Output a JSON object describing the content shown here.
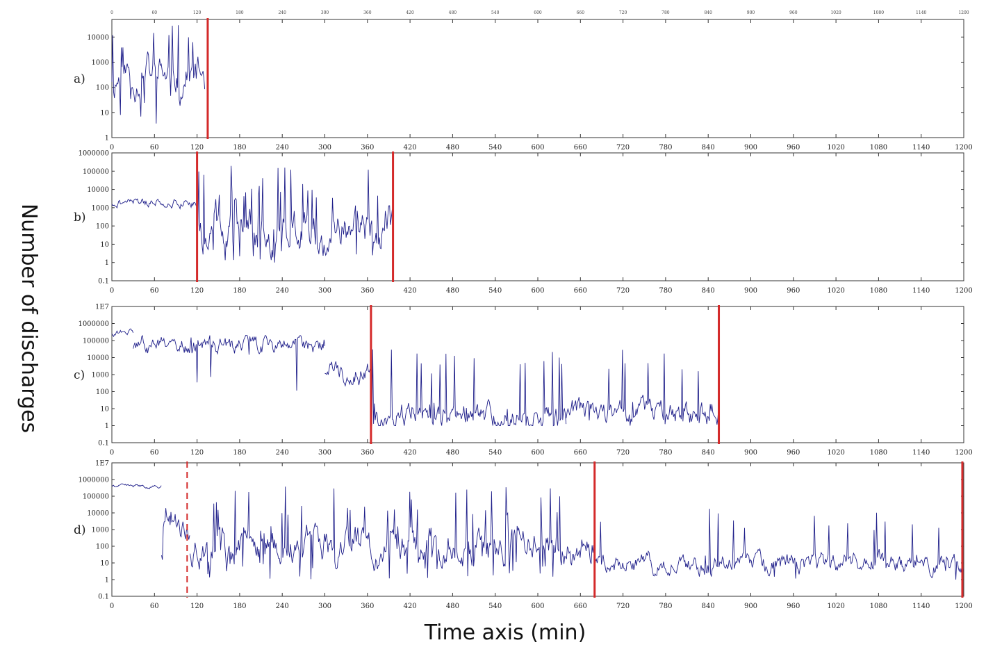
{
  "chart_data": {
    "type": "line",
    "xlabel": "Time axis (min)",
    "ylabel": "Number of discharges",
    "x_ticks": [
      0,
      60,
      120,
      180,
      240,
      300,
      360,
      420,
      480,
      540,
      600,
      660,
      720,
      780,
      840,
      900,
      960,
      1020,
      1080,
      1140,
      1200
    ],
    "xlim": [
      0,
      1200
    ],
    "y_scale": "log",
    "colors": {
      "series": "#1f1f8a",
      "marker": "#d42a2a"
    },
    "panels": [
      {
        "label": "a)",
        "yticks": [
          {
            "v": 1,
            "label": "1"
          },
          {
            "v": 10,
            "label": "10"
          },
          {
            "v": 100,
            "label": "100"
          },
          {
            "v": 1000,
            "label": "1000"
          },
          {
            "v": 10000,
            "label": "10000"
          }
        ],
        "ylim": [
          1,
          50000
        ],
        "top_axis": true,
        "series_segments": [
          {
            "x_start": 0,
            "x_end": 132,
            "base": 300,
            "spread": 1.0,
            "min_value": 3,
            "max_value": 30000,
            "spikes": 0.12,
            "seed": 11
          }
        ],
        "markers": [
          {
            "x": 135,
            "style": "solid"
          }
        ]
      },
      {
        "label": "b)",
        "yticks": [
          {
            "v": 0.1,
            "label": "0.1"
          },
          {
            "v": 1,
            "label": "1"
          },
          {
            "v": 10,
            "label": "10"
          },
          {
            "v": 100,
            "label": "100"
          },
          {
            "v": 1000,
            "label": "1000"
          },
          {
            "v": 10000,
            "label": "10000"
          },
          {
            "v": 100000,
            "label": "100000"
          },
          {
            "v": 1000000,
            "label": "1000000"
          }
        ],
        "ylim": [
          0.1,
          1000000
        ],
        "series_segments": [
          {
            "x_start": 0,
            "x_end": 120,
            "base": 2000,
            "spread": 0.35,
            "min_value": 100,
            "max_value": 8000,
            "spikes": 0.0,
            "seed": 21
          },
          {
            "x_start": 120,
            "x_end": 396,
            "base": 60,
            "spread": 1.5,
            "min_value": 1,
            "max_value": 200000,
            "spikes": 0.18,
            "seed": 22
          }
        ],
        "markers": [
          {
            "x": 120,
            "style": "solid"
          },
          {
            "x": 396,
            "style": "solid"
          }
        ]
      },
      {
        "label": "c)",
        "yticks": [
          {
            "v": 0.1,
            "label": "0.1"
          },
          {
            "v": 1,
            "label": "1"
          },
          {
            "v": 10,
            "label": "10"
          },
          {
            "v": 100,
            "label": "100"
          },
          {
            "v": 1000,
            "label": "1000"
          },
          {
            "v": 10000,
            "label": "10000"
          },
          {
            "v": 100000,
            "label": "100000"
          },
          {
            "v": 1000000,
            "label": "1000000"
          },
          {
            "v": 10000000,
            "label": "1E7"
          }
        ],
        "ylim": [
          0.1,
          10000000
        ],
        "series_segments": [
          {
            "x_start": 0,
            "x_end": 30,
            "base": 300000,
            "spread": 0.25,
            "min_value": 50000,
            "max_value": 600000,
            "spikes": 0.0,
            "seed": 31
          },
          {
            "x_start": 30,
            "x_end": 300,
            "base": 50000,
            "spread": 0.7,
            "min_value": 100,
            "max_value": 200000,
            "spikes": 0.05,
            "seed": 32
          },
          {
            "x_start": 300,
            "x_end": 365,
            "base": 2000,
            "spread": 0.9,
            "min_value": 30,
            "max_value": 60000,
            "spikes": 0.05,
            "seed": 33
          },
          {
            "x_start": 365,
            "x_end": 640,
            "base": 3,
            "spread": 1.0,
            "min_value": 1,
            "max_value": 30000,
            "spikes": 0.1,
            "seed": 34
          },
          {
            "x_start": 640,
            "x_end": 855,
            "base": 5,
            "spread": 1.0,
            "min_value": 1,
            "max_value": 30000,
            "spikes": 0.1,
            "seed": 35
          }
        ],
        "markers": [
          {
            "x": 365,
            "style": "solid"
          },
          {
            "x": 855,
            "style": "solid"
          }
        ]
      },
      {
        "label": "d)",
        "yticks": [
          {
            "v": 0.1,
            "label": "0.1"
          },
          {
            "v": 1,
            "label": "1"
          },
          {
            "v": 10,
            "label": "10"
          },
          {
            "v": 100,
            "label": "100"
          },
          {
            "v": 1000,
            "label": "1000"
          },
          {
            "v": 10000,
            "label": "10000"
          },
          {
            "v": 100000,
            "label": "100000"
          },
          {
            "v": 1000000,
            "label": "1000000"
          },
          {
            "v": 10000000,
            "label": "1E7"
          }
        ],
        "ylim": [
          0.1,
          10000000
        ],
        "series_segments": [
          {
            "x_start": 0,
            "x_end": 70,
            "base": 400000,
            "spread": 0.15,
            "min_value": 100000,
            "max_value": 700000,
            "spikes": 0.0,
            "seed": 41
          },
          {
            "x_start": 70,
            "x_end": 110,
            "base": 1000,
            "spread": 1.0,
            "min_value": 2,
            "max_value": 1000000,
            "spikes": 0.1,
            "seed": 42
          },
          {
            "x_start": 110,
            "x_end": 680,
            "base": 80,
            "spread": 1.4,
            "min_value": 1,
            "max_value": 500000,
            "spikes": 0.15,
            "seed": 43
          },
          {
            "x_start": 680,
            "x_end": 1200,
            "base": 8,
            "spread": 0.8,
            "min_value": 1,
            "max_value": 20000,
            "spikes": 0.06,
            "seed": 44
          }
        ],
        "markers": [
          {
            "x": 106,
            "style": "dashed"
          },
          {
            "x": 680,
            "style": "solid"
          },
          {
            "x": 1198,
            "style": "solid"
          }
        ]
      }
    ]
  }
}
